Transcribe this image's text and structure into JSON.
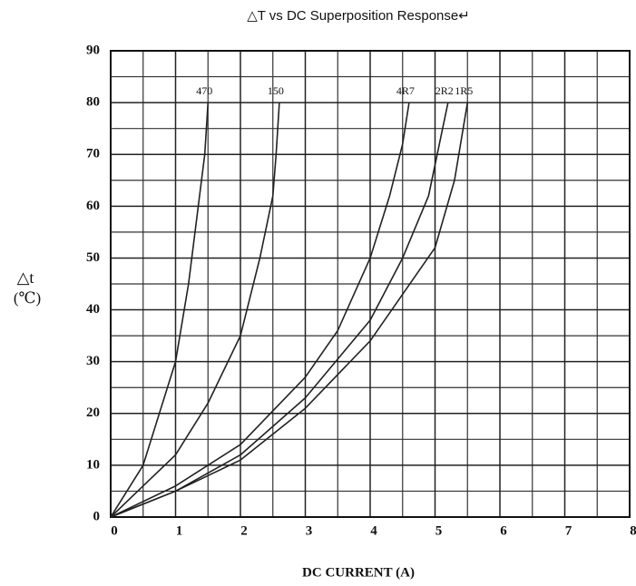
{
  "chart_data": {
    "type": "line",
    "title": "△T vs DC Superposition Response↵",
    "x_label": "DC CURRENT (A)",
    "y_label": [
      "△t",
      "(℃)"
    ],
    "xlim": [
      0,
      8
    ],
    "xticks": [
      0,
      1,
      2,
      3,
      4,
      5,
      6,
      7,
      8
    ],
    "ylim": [
      0,
      90
    ],
    "yticks": [
      0,
      10,
      20,
      30,
      40,
      50,
      60,
      70,
      80,
      90
    ],
    "minor_xticks": [
      0.5,
      1.5,
      2.5,
      3.5,
      4.5,
      5.5,
      6.5,
      7.5
    ],
    "minor_yticks": [
      5,
      15,
      25,
      35,
      45,
      55,
      65,
      75,
      85
    ],
    "grid": true,
    "series": [
      {
        "name": "470",
        "color": "#222",
        "x": [
          0,
          0.5,
          1,
          1.2,
          1.35,
          1.45,
          1.5
        ],
        "values": [
          0,
          10,
          30,
          45,
          60,
          70,
          80
        ]
      },
      {
        "name": "150",
        "color": "#222",
        "x": [
          0,
          0.5,
          1,
          1.5,
          2,
          2.3,
          2.5,
          2.55,
          2.6
        ],
        "values": [
          0,
          6,
          12,
          22,
          35,
          50,
          62,
          70,
          80
        ]
      },
      {
        "name": "4R7",
        "color": "#222",
        "x": [
          0,
          1,
          2,
          3,
          3.5,
          4,
          4.3,
          4.5,
          4.6
        ],
        "values": [
          0,
          6,
          14,
          27,
          36,
          50,
          62,
          72,
          80
        ]
      },
      {
        "name": "2R2",
        "color": "#222",
        "x": [
          0,
          1,
          2,
          3,
          4,
          4.5,
          4.9,
          5.2
        ],
        "values": [
          0,
          5,
          12,
          23,
          38,
          50,
          62,
          80
        ]
      },
      {
        "name": "1R5",
        "color": "#222",
        "x": [
          0,
          1,
          2,
          3,
          4,
          5,
          5.3,
          5.5
        ],
        "values": [
          0,
          5,
          11,
          21,
          34,
          52,
          65,
          80
        ]
      }
    ]
  }
}
